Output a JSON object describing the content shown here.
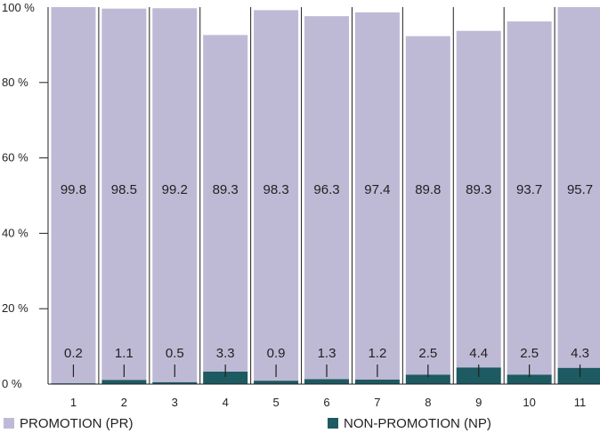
{
  "chart_data": {
    "type": "bar",
    "stacked": true,
    "categories": [
      "1",
      "2",
      "3",
      "4",
      "5",
      "6",
      "7",
      "8",
      "9",
      "10",
      "11"
    ],
    "series": [
      {
        "name": "PROMOTION (PR)",
        "values": [
          99.8,
          98.5,
          99.2,
          89.3,
          98.3,
          96.3,
          97.4,
          89.8,
          89.3,
          93.7,
          95.7
        ],
        "color": "#bebad6"
      },
      {
        "name": "NON-PROMOTION (NP)",
        "values": [
          0.2,
          1.1,
          0.5,
          3.3,
          0.9,
          1.3,
          1.2,
          2.5,
          4.4,
          2.5,
          4.3
        ],
        "color": "#1d5a62"
      }
    ],
    "yticks": [
      "0 %",
      "20 %",
      "40 %",
      "60 %",
      "80 %",
      "100 %"
    ],
    "ylim": [
      0,
      100
    ],
    "grid": false,
    "legend_position": "bottom",
    "title": "",
    "xlabel": "",
    "ylabel": ""
  },
  "legend": {
    "promotion_label": "PROMOTION (PR)",
    "non_promotion_label": "NON-PROMOTION (NP)"
  }
}
